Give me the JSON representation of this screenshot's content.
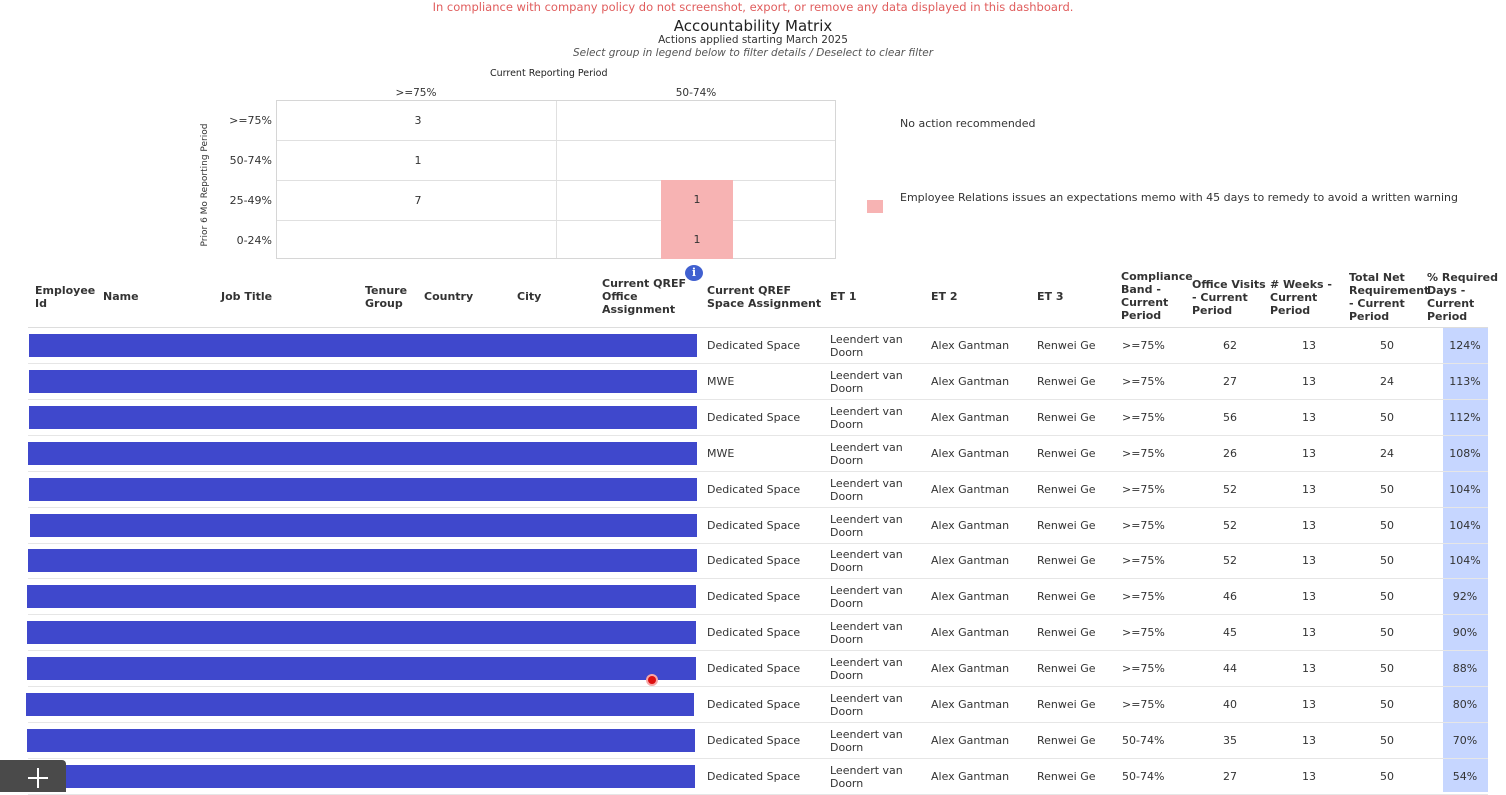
{
  "header": {
    "policy_notice": "In compliance with company policy do not screenshot, export, or remove any data displayed in this dashboard.",
    "title": "Accountability Matrix",
    "subtitle": "Actions applied starting March 2025",
    "instruction": "Select group in legend below to filter details / Deselect to clear filter"
  },
  "matrix": {
    "x_title": "Current Reporting Period",
    "y_title": "Prior 6 Mo Reporting Period",
    "columns": [
      ">=75%",
      "50-74%"
    ],
    "rows": [
      ">=75%",
      "50-74%",
      "25-49%",
      "0-24%"
    ],
    "values": {
      "c0": [
        "3",
        "1",
        "7",
        ""
      ],
      "c1": [
        "",
        "",
        "1",
        "1"
      ]
    }
  },
  "legend": {
    "no_action": "No action recommended",
    "memo": "Employee Relations issues an expectations memo with 45 days to remedy to avoid a written warning",
    "memo_color": "#f7b3b3"
  },
  "table": {
    "headers": {
      "employee_id": "Employee Id",
      "name": "Name",
      "job_title": "Job Title",
      "tenure": "Tenure Group",
      "country": "Country",
      "city": "City",
      "office": "Current QREF Office Assignment",
      "space": "Current QREF Space Assignment",
      "et1": "ET 1",
      "et2": "ET 2",
      "et3": "ET 3",
      "band": "Compliance Band - Current Period",
      "visits": "Office Visits - Current Period",
      "weeks": "# Weeks - Current Period",
      "req": "Total Net Requirement - Current Period",
      "pct": "% Required Days - Current Period"
    },
    "redaction_color": "#3f48cc",
    "rows": [
      {
        "space": "Dedicated Space",
        "et1": "Leendert van Doorn",
        "et2": "Alex Gantman",
        "et3": "Renwei Ge",
        "band": ">=75%",
        "visits": "62",
        "weeks": "13",
        "req": "50",
        "pct": "124%"
      },
      {
        "space": "MWE",
        "et1": "Leendert van Doorn",
        "et2": "Alex Gantman",
        "et3": "Renwei Ge",
        "band": ">=75%",
        "visits": "27",
        "weeks": "13",
        "req": "24",
        "pct": "113%"
      },
      {
        "space": "Dedicated Space",
        "et1": "Leendert van Doorn",
        "et2": "Alex Gantman",
        "et3": "Renwei Ge",
        "band": ">=75%",
        "visits": "56",
        "weeks": "13",
        "req": "50",
        "pct": "112%"
      },
      {
        "space": "MWE",
        "et1": "Leendert van Doorn",
        "et2": "Alex Gantman",
        "et3": "Renwei Ge",
        "band": ">=75%",
        "visits": "26",
        "weeks": "13",
        "req": "24",
        "pct": "108%"
      },
      {
        "space": "Dedicated Space",
        "et1": "Leendert van Doorn",
        "et2": "Alex Gantman",
        "et3": "Renwei Ge",
        "band": ">=75%",
        "visits": "52",
        "weeks": "13",
        "req": "50",
        "pct": "104%"
      },
      {
        "space": "Dedicated Space",
        "et1": "Leendert van Doorn",
        "et2": "Alex Gantman",
        "et3": "Renwei Ge",
        "band": ">=75%",
        "visits": "52",
        "weeks": "13",
        "req": "50",
        "pct": "104%"
      },
      {
        "space": "Dedicated Space",
        "et1": "Leendert van Doorn",
        "et2": "Alex Gantman",
        "et3": "Renwei Ge",
        "band": ">=75%",
        "visits": "52",
        "weeks": "13",
        "req": "50",
        "pct": "104%"
      },
      {
        "space": "Dedicated Space",
        "et1": "Leendert van Doorn",
        "et2": "Alex Gantman",
        "et3": "Renwei Ge",
        "band": ">=75%",
        "visits": "46",
        "weeks": "13",
        "req": "50",
        "pct": "92%"
      },
      {
        "space": "Dedicated Space",
        "et1": "Leendert van Doorn",
        "et2": "Alex Gantman",
        "et3": "Renwei Ge",
        "band": ">=75%",
        "visits": "45",
        "weeks": "13",
        "req": "50",
        "pct": "90%"
      },
      {
        "space": "Dedicated Space",
        "et1": "Leendert van Doorn",
        "et2": "Alex Gantman",
        "et3": "Renwei Ge",
        "band": ">=75%",
        "visits": "44",
        "weeks": "13",
        "req": "50",
        "pct": "88%"
      },
      {
        "space": "Dedicated Space",
        "et1": "Leendert van Doorn",
        "et2": "Alex Gantman",
        "et3": "Renwei Ge",
        "band": ">=75%",
        "visits": "40",
        "weeks": "13",
        "req": "50",
        "pct": "80%"
      },
      {
        "space": "Dedicated Space",
        "et1": "Leendert van Doorn",
        "et2": "Alex Gantman",
        "et3": "Renwei Ge",
        "band": "50-74%",
        "visits": "35",
        "weeks": "13",
        "req": "50",
        "pct": "70%"
      },
      {
        "space": "Dedicated Space",
        "et1": "Leendert van Doorn",
        "et2": "Alex Gantman",
        "et3": "Renwei Ge",
        "band": "50-74%",
        "visits": "27",
        "weeks": "13",
        "req": "50",
        "pct": "54%"
      }
    ]
  },
  "icons": {
    "info": "info-icon",
    "add": "plus-icon"
  },
  "info_glyph": "i"
}
